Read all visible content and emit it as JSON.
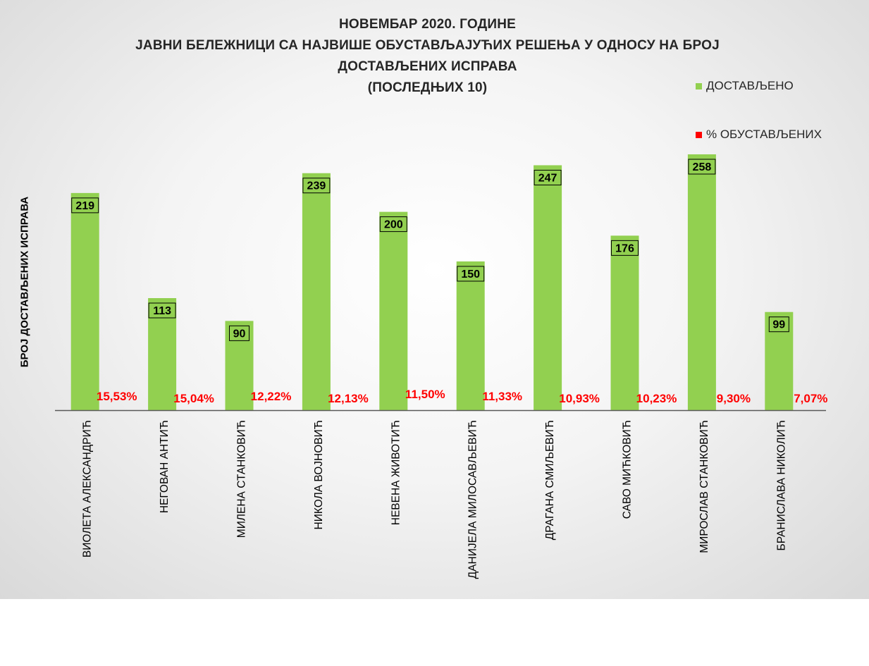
{
  "chart_data": {
    "type": "bar",
    "title_lines": [
      "НОВЕМБАР 2020. ГОДИНЕ",
      "ЈАВНИ БЕЛЕЖНИЦИ СА НАЈВИШЕ ОБУСТАВЉАЈУЋИХ РЕШЕЊА У ОДНОСУ НА БРОЈ",
      "ДОСТАВЉЕНИХ ИСПРАВА",
      "(ПОСЛЕДЊИХ 10)"
    ],
    "ylabel": "БРОЈ ДОСТАВЉЕНИХ ИСПРАВА",
    "xlabel": "",
    "ylim": [
      0,
      280
    ],
    "legend_position": "right",
    "categories": [
      "ВИОЛЕТА АЛЕКСАНДРИЋ",
      "НЕГОВАН АНТИЋ",
      "МИЛЕНА СТАНКОВИЋ",
      "НИКОЛА ВОЈНОВИЋ",
      "НЕВЕНА ЖИВОТИЋ",
      "ДАНИЈЕЛА МИЛОСАВЉЕВИЋ",
      "ДРАГАНА СМИЉЕВИЋ",
      "САВО МИЋКОВИЋ",
      "МИРОСЛАВ СТАНКОВИЋ",
      "БРАНИСЛАВА НИКОЛИЋ"
    ],
    "series": [
      {
        "name": "ДОСТАВЉЕНО",
        "color": "#92d050",
        "values": [
          219,
          113,
          90,
          239,
          200,
          150,
          247,
          176,
          258,
          99
        ],
        "labels": [
          "219",
          "113",
          "90",
          "239",
          "200",
          "150",
          "247",
          "176",
          "258",
          "99"
        ]
      },
      {
        "name": "% ОБУСТАВЉЕНИХ",
        "color": "#ff0000",
        "values": [
          15.53,
          15.04,
          12.22,
          12.13,
          11.5,
          11.33,
          10.93,
          10.23,
          9.3,
          7.07
        ],
        "labels": [
          "15,53%",
          "15,04%",
          "12,22%",
          "12,13%",
          "11,50%",
          "11,33%",
          "10,93%",
          "10,23%",
          "9,30%",
          "7,07%"
        ]
      }
    ]
  }
}
